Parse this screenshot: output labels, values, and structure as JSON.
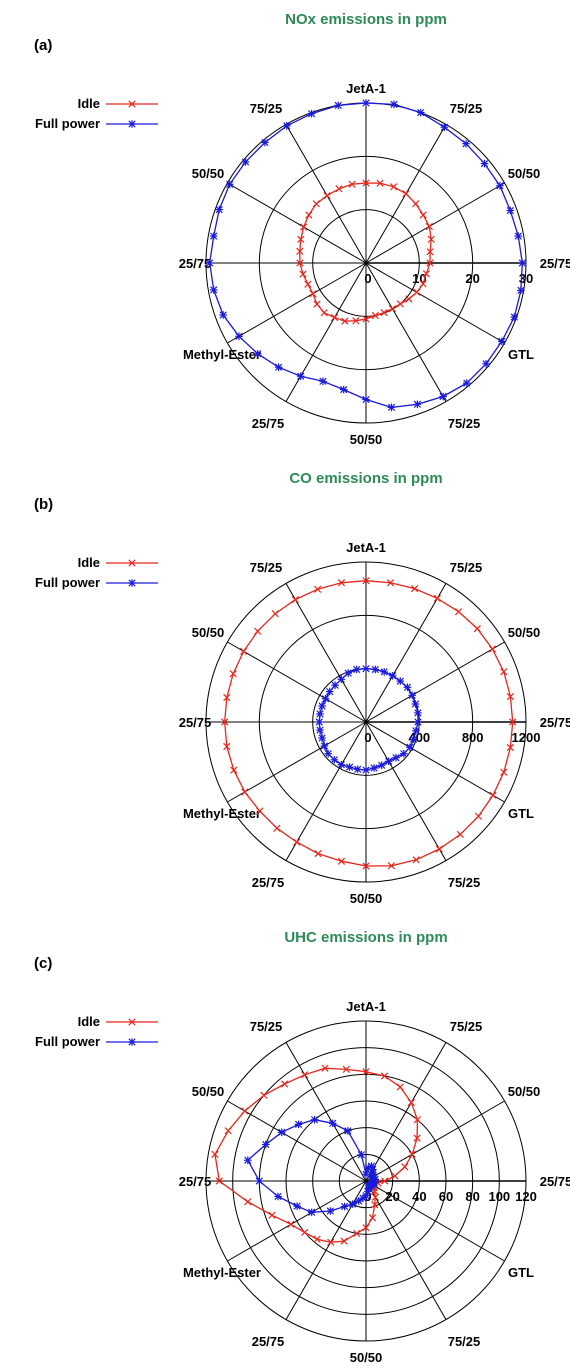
{
  "directions": [
    "JetA-1",
    "75/25",
    "50/50",
    "25/75",
    "GTL",
    "75/25",
    "50/50",
    "25/75",
    "Methyl-Ester",
    "25/75",
    "50/50",
    "75/25"
  ],
  "legend": {
    "idle": "Idle",
    "full": "Full power"
  },
  "colors": {
    "idle": "#e8261c",
    "full": "#1a1adb",
    "title": "#2e8b57"
  },
  "chart_data": [
    {
      "type": "polar_line",
      "panel_label": "(a)",
      "title": "NOx emissions in ppm",
      "radial_ticks": [
        "0",
        "10",
        "20",
        "30"
      ],
      "rlim": [
        0,
        30
      ],
      "angle_grid_deg": 30,
      "grid": true,
      "legend_position": "top-left",
      "series": [
        {
          "name": "Idle",
          "marker": "x",
          "values": [
            15,
            15.2,
            15.2,
            15,
            14.5,
            14,
            13.7,
            13,
            12.2,
            12,
            11.5,
            11.4,
            11,
            10.5,
            10,
            9.9,
            9.9,
            10,
            10.5,
            11,
            11.6,
            11.8,
            12.2,
            12,
            11.5,
            11.6,
            12,
            12.4,
            12.6,
            13,
            13.5,
            14,
            14.5,
            14.6,
            14.8,
            15
          ]
        },
        {
          "name": "Full power",
          "marker": "asterisk",
          "values": [
            30,
            30.2,
            30,
            29.4,
            29.2,
            29,
            29,
            28.8,
            29,
            29.3,
            29.5,
            29.6,
            29.4,
            29.4,
            29.4,
            28.9,
            28.2,
            27.5,
            25.6,
            24.1,
            23.6,
            24.5,
            25.5,
            26.5,
            27.5,
            28.5,
            29,
            29.3,
            29,
            29.3,
            29.5,
            29.5,
            29.5,
            29.7,
            29.8,
            30
          ]
        }
      ]
    },
    {
      "type": "polar_line",
      "panel_label": "(b)",
      "title": "CO emissions in ppm",
      "radial_ticks": [
        "0",
        "400",
        "800",
        "1200"
      ],
      "rlim": [
        0,
        1200
      ],
      "angle_grid_deg": 30,
      "grid": true,
      "legend_position": "top-left",
      "series": [
        {
          "name": "Idle",
          "marker": "x",
          "values": [
            1060,
            1060,
            1065,
            1070,
            1080,
            1090,
            1095,
            1100,
            1100,
            1100,
            1100,
            1100,
            1100,
            1100,
            1100,
            1100,
            1100,
            1095,
            1080,
            1060,
            1050,
            1040,
            1040,
            1040,
            1050,
            1055,
            1060,
            1060,
            1060,
            1060,
            1060,
            1060,
            1060,
            1060,
            1060,
            1060
          ]
        },
        {
          "name": "Full power",
          "marker": "asterisk",
          "values": [
            400,
            400,
            400,
            400,
            400,
            405,
            400,
            395,
            395,
            390,
            380,
            380,
            380,
            370,
            350,
            340,
            345,
            350,
            360,
            360,
            360,
            370,
            370,
            370,
            360,
            350,
            350,
            350,
            350,
            350,
            350,
            355,
            360,
            370,
            390,
            400
          ]
        }
      ]
    },
    {
      "type": "polar_line",
      "panel_label": "(c)",
      "title": "UHC emissions in ppm",
      "radial_ticks": [
        "0",
        "20",
        "40",
        "60",
        "80",
        "100",
        "120"
      ],
      "rlim": [
        0,
        120
      ],
      "angle_grid_deg": 30,
      "grid": true,
      "legend_position": "top-left",
      "series": [
        {
          "name": "Idle",
          "marker": "x",
          "values": [
            82,
            80,
            75,
            68,
            60,
            50,
            40,
            31,
            22,
            14,
            9,
            7,
            6,
            8,
            10,
            14,
            19,
            28,
            35,
            40,
            48,
            53,
            57,
            60,
            65,
            75,
            90,
            110,
            115,
            110,
            105,
            100,
            95,
            92,
            90,
            85
          ]
        },
        {
          "name": "Full power",
          "marker": "asterisk",
          "values": [
            5,
            10,
            12,
            10,
            8,
            6,
            6,
            6,
            7,
            6,
            6,
            6,
            5,
            5,
            4,
            5,
            6,
            8,
            11,
            13,
            16,
            20,
            25,
            35,
            47,
            55,
            67,
            80,
            90,
            80,
            73,
            66,
            60,
            50,
            40,
            20
          ]
        }
      ]
    }
  ]
}
